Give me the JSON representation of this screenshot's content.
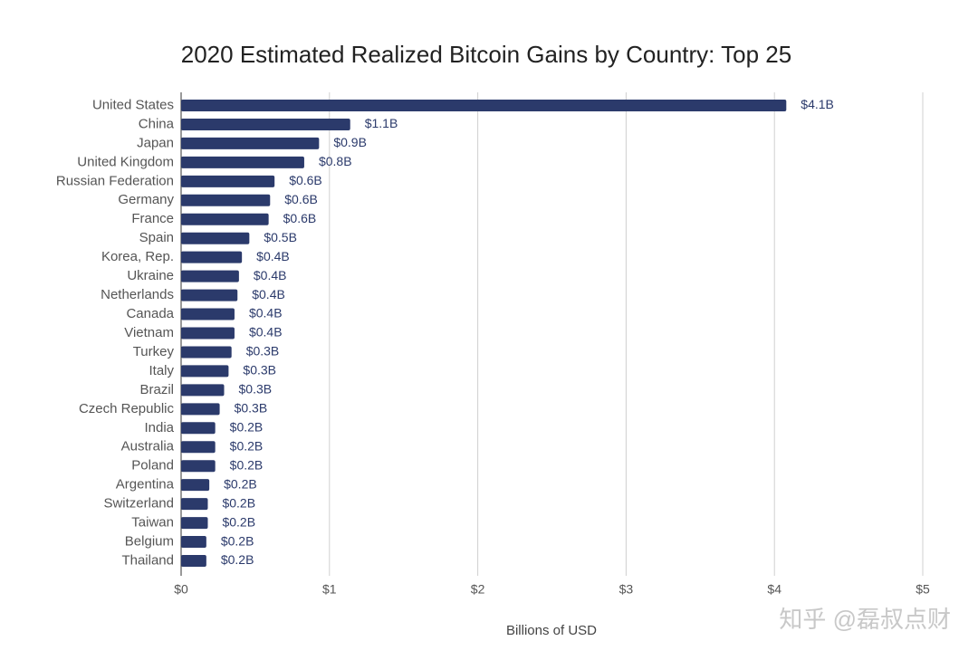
{
  "chart_data": {
    "type": "bar",
    "orientation": "horizontal",
    "title": "2020 Estimated Realized Bitcoin Gains by Country: Top 25",
    "x_label": "Billions of USD",
    "categories": [
      "United States",
      "China",
      "Japan",
      "United Kingdom",
      "Russian Federation",
      "Germany",
      "France",
      "Spain",
      "Korea, Rep.",
      "Ukraine",
      "Netherlands",
      "Canada",
      "Vietnam",
      "Turkey",
      "Italy",
      "Brazil",
      "Czech Republic",
      "India",
      "Australia",
      "Poland",
      "Argentina",
      "Switzerland",
      "Taiwan",
      "Belgium",
      "Thailand"
    ],
    "values": [
      4.08,
      1.14,
      0.93,
      0.83,
      0.63,
      0.6,
      0.59,
      0.46,
      0.41,
      0.39,
      0.38,
      0.36,
      0.36,
      0.34,
      0.32,
      0.29,
      0.26,
      0.23,
      0.23,
      0.23,
      0.19,
      0.18,
      0.18,
      0.17,
      0.17
    ],
    "value_labels": [
      "$4.1B",
      "$1.1B",
      "$0.9B",
      "$0.8B",
      "$0.6B",
      "$0.6B",
      "$0.6B",
      "$0.5B",
      "$0.4B",
      "$0.4B",
      "$0.4B",
      "$0.4B",
      "$0.4B",
      "$0.3B",
      "$0.3B",
      "$0.3B",
      "$0.3B",
      "$0.2B",
      "$0.2B",
      "$0.2B",
      "$0.2B",
      "$0.2B",
      "$0.2B",
      "$0.2B",
      "$0.2B"
    ],
    "color": "#2b3a6b",
    "xlim": [
      0,
      5
    ],
    "xticks": [
      {
        "value": 0,
        "label": "$0"
      },
      {
        "value": 1,
        "label": "$1"
      },
      {
        "value": 2,
        "label": "$2"
      },
      {
        "value": 3,
        "label": "$3"
      },
      {
        "value": 4,
        "label": "$4"
      },
      {
        "value": 5,
        "label": "$5"
      }
    ],
    "grid": true,
    "watermark": "知乎 @磊叔点财"
  }
}
